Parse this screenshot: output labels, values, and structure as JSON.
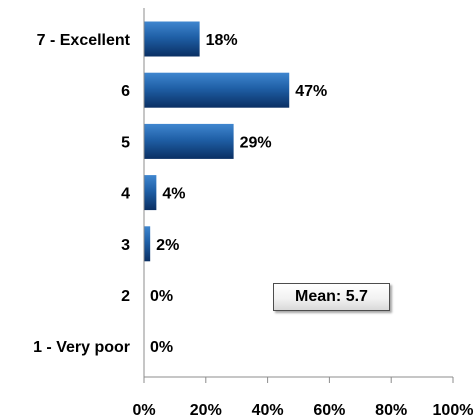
{
  "chart_data": {
    "type": "bar",
    "orientation": "horizontal",
    "categories": [
      "7 - Excellent",
      "6",
      "5",
      "4",
      "3",
      "2",
      "1 - Very poor"
    ],
    "values": [
      18,
      47,
      29,
      4,
      2,
      0,
      0
    ],
    "value_labels": [
      "18%",
      "47%",
      "29%",
      "4%",
      "2%",
      "0%",
      "0%"
    ],
    "xlim": [
      0,
      100
    ],
    "x_ticks": [
      "0%",
      "20%",
      "40%",
      "60%",
      "80%",
      "100%"
    ],
    "grid": false,
    "title": "",
    "xlabel": "",
    "ylabel": "",
    "bar_color": "#1f5fa6",
    "bar_color_dark": "#0a2f63",
    "bar_color_light": "#3f86cf"
  },
  "annotation": {
    "mean_text": "Mean: 5.7"
  }
}
